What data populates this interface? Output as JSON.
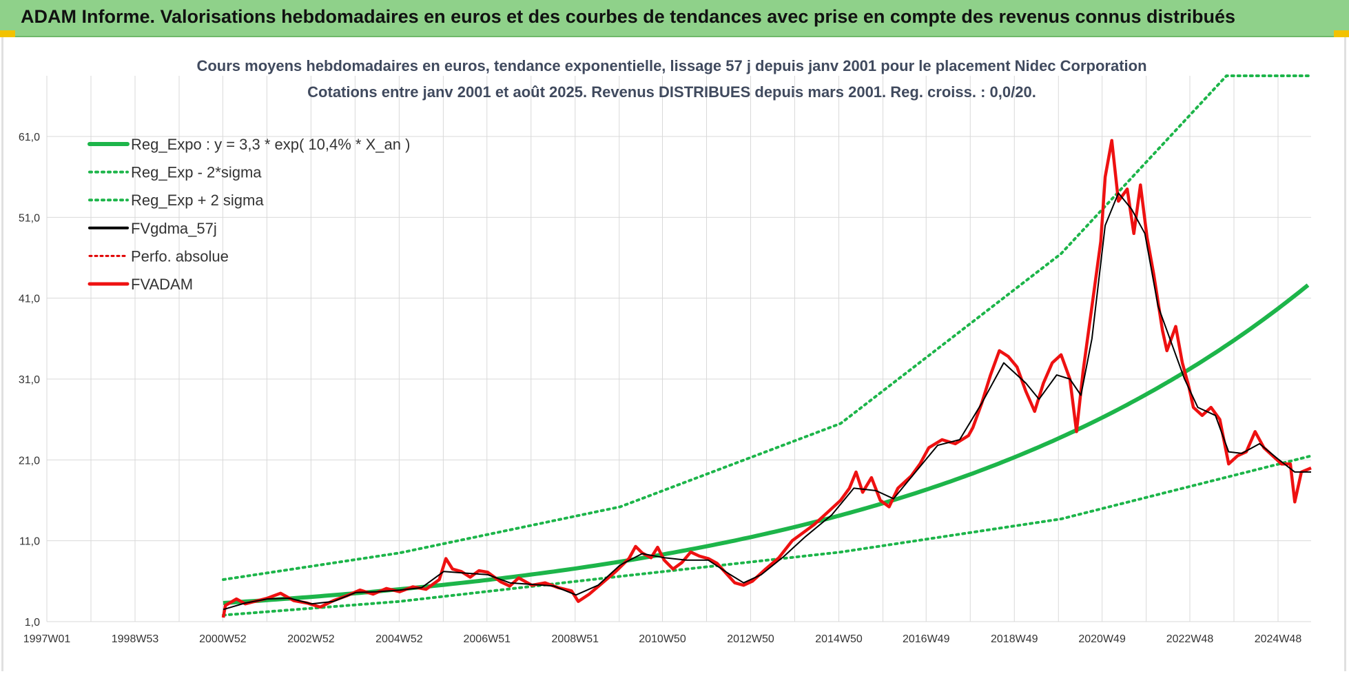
{
  "header": {
    "title": "ADAM Informe. Valorisations hebdomadaires en euros et des courbes de tendances avec prise en compte des revenus connus distribués"
  },
  "colors": {
    "banner": "#8fd18a",
    "regression": "#1db54a",
    "sigma": "#1db54a",
    "fvgdma": "#000000",
    "perfo": "#e00000",
    "fvadam": "#ee1111",
    "grid": "#d9d9d9"
  },
  "chart_data": {
    "type": "line",
    "title": "Cours moyens hebdomadaires en euros, tendance exponentielle, lissage 57 j depuis janv 2001 pour le placement Nidec Corporation",
    "subtitle": "Cotations entre janv 2001 et août 2025.  Revenus DISTRIBUES depuis mars 2001. Reg. croiss. : 0,0/20.",
    "xlabel": "",
    "ylabel": "",
    "x_range": [
      1997.0,
      2025.67
    ],
    "ylim": [
      1.0,
      68.5
    ],
    "y_ticks": [
      1.0,
      11.0,
      21.0,
      31.0,
      41.0,
      51.0,
      61.0
    ],
    "y_tick_labels": [
      "1,0",
      "11,0",
      "21,0",
      "31,0",
      "41,0",
      "51,0",
      "61,0"
    ],
    "x_ticks": [
      {
        "label": "1997W01",
        "x": 1997.0
      },
      {
        "label": "1998W53",
        "x": 1999.0
      },
      {
        "label": "2000W52",
        "x": 2000.99
      },
      {
        "label": "2002W52",
        "x": 2002.99
      },
      {
        "label": "2004W52",
        "x": 2004.99
      },
      {
        "label": "2006W51",
        "x": 2006.98
      },
      {
        "label": "2008W51",
        "x": 2008.98
      },
      {
        "label": "2010W50",
        "x": 2010.96
      },
      {
        "label": "2012W50",
        "x": 2012.96
      },
      {
        "label": "2014W50",
        "x": 2014.96
      },
      {
        "label": "2016W49",
        "x": 2016.94
      },
      {
        "label": "2018W49",
        "x": 2018.94
      },
      {
        "label": "2020W49",
        "x": 2020.93
      },
      {
        "label": "2022W48",
        "x": 2022.92
      },
      {
        "label": "2024W48",
        "x": 2024.92
      }
    ],
    "grid": true,
    "legend_position": "top-left",
    "legend": [
      {
        "key": "reg",
        "label": "Reg_Expo : y = 3,3 * exp( 10,4% *  X_an )"
      },
      {
        "key": "minus",
        "label": "Reg_Exp - 2*sigma"
      },
      {
        "key": "plus",
        "label": "Reg_Exp + 2 sigma"
      },
      {
        "key": "fvgdma",
        "label": "FVgdma_57j"
      },
      {
        "key": "perfo",
        "label": "Perfo. absolue"
      },
      {
        "key": "fvadam",
        "label": "FVADAM"
      }
    ],
    "regression": {
      "a": 3.3,
      "b": 0.104,
      "x_start": 2001.0,
      "x_end": 2025.67
    },
    "sigma_bands": {
      "minus": [
        [
          2001.0,
          1.8
        ],
        [
          2005.0,
          3.5
        ],
        [
          2010.0,
          6.6
        ],
        [
          2015.0,
          9.6
        ],
        [
          2020.0,
          13.7
        ],
        [
          2025.67,
          21.5
        ]
      ],
      "plus": [
        [
          2001.0,
          6.2
        ],
        [
          2005.0,
          9.5
        ],
        [
          2010.0,
          15.2
        ],
        [
          2015.0,
          25.5
        ],
        [
          2020.0,
          46.5
        ],
        [
          2023.75,
          68.5
        ],
        [
          2025.67,
          68.5
        ]
      ]
    },
    "series": [
      {
        "name": "FVADAM",
        "points": [
          [
            2001.0,
            1.5
          ],
          [
            2001.05,
            3.0
          ],
          [
            2001.3,
            3.8
          ],
          [
            2001.5,
            3.2
          ],
          [
            2002.0,
            3.9
          ],
          [
            2002.3,
            4.5
          ],
          [
            2002.6,
            3.6
          ],
          [
            2002.9,
            3.3
          ],
          [
            2003.2,
            2.8
          ],
          [
            2003.5,
            3.6
          ],
          [
            2003.8,
            4.2
          ],
          [
            2004.1,
            4.9
          ],
          [
            2004.4,
            4.4
          ],
          [
            2004.7,
            5.1
          ],
          [
            2005.0,
            4.7
          ],
          [
            2005.3,
            5.3
          ],
          [
            2005.6,
            5.0
          ],
          [
            2005.9,
            6.2
          ],
          [
            2006.05,
            8.8
          ],
          [
            2006.2,
            7.5
          ],
          [
            2006.4,
            7.2
          ],
          [
            2006.6,
            6.5
          ],
          [
            2006.8,
            7.3
          ],
          [
            2007.0,
            7.1
          ],
          [
            2007.3,
            5.9
          ],
          [
            2007.5,
            5.4
          ],
          [
            2007.7,
            6.4
          ],
          [
            2008.0,
            5.5
          ],
          [
            2008.3,
            5.8
          ],
          [
            2008.6,
            5.2
          ],
          [
            2008.9,
            4.8
          ],
          [
            2009.05,
            3.5
          ],
          [
            2009.3,
            4.4
          ],
          [
            2009.6,
            5.8
          ],
          [
            2009.9,
            7.2
          ],
          [
            2010.2,
            8.8
          ],
          [
            2010.35,
            10.3
          ],
          [
            2010.5,
            9.5
          ],
          [
            2010.7,
            8.9
          ],
          [
            2010.85,
            10.2
          ],
          [
            2011.0,
            8.6
          ],
          [
            2011.2,
            7.5
          ],
          [
            2011.4,
            8.3
          ],
          [
            2011.6,
            9.6
          ],
          [
            2011.8,
            9.1
          ],
          [
            2012.0,
            8.8
          ],
          [
            2012.2,
            8.2
          ],
          [
            2012.4,
            7.0
          ],
          [
            2012.6,
            5.8
          ],
          [
            2012.8,
            5.5
          ],
          [
            2013.0,
            6.0
          ],
          [
            2013.3,
            7.5
          ],
          [
            2013.6,
            8.9
          ],
          [
            2013.9,
            11.0
          ],
          [
            2014.1,
            11.8
          ],
          [
            2014.4,
            13.0
          ],
          [
            2014.7,
            14.5
          ],
          [
            2015.0,
            16.0
          ],
          [
            2015.2,
            17.5
          ],
          [
            2015.35,
            19.5
          ],
          [
            2015.5,
            17.0
          ],
          [
            2015.7,
            18.8
          ],
          [
            2015.9,
            16.0
          ],
          [
            2016.1,
            15.2
          ],
          [
            2016.3,
            17.5
          ],
          [
            2016.6,
            19.0
          ],
          [
            2016.8,
            20.5
          ],
          [
            2017.0,
            22.5
          ],
          [
            2017.3,
            23.5
          ],
          [
            2017.6,
            23.0
          ],
          [
            2017.9,
            24.0
          ],
          [
            2018.0,
            25.0
          ],
          [
            2018.2,
            28.0
          ],
          [
            2018.4,
            31.5
          ],
          [
            2018.6,
            34.5
          ],
          [
            2018.8,
            33.8
          ],
          [
            2019.0,
            32.5
          ],
          [
            2019.2,
            29.5
          ],
          [
            2019.4,
            27.0
          ],
          [
            2019.6,
            30.5
          ],
          [
            2019.8,
            33.0
          ],
          [
            2020.0,
            34.0
          ],
          [
            2020.2,
            31.0
          ],
          [
            2020.35,
            24.5
          ],
          [
            2020.5,
            32.0
          ],
          [
            2020.7,
            40.0
          ],
          [
            2020.9,
            48.0
          ],
          [
            2021.0,
            56.0
          ],
          [
            2021.15,
            60.5
          ],
          [
            2021.3,
            53.0
          ],
          [
            2021.5,
            54.5
          ],
          [
            2021.65,
            49.0
          ],
          [
            2021.8,
            55.0
          ],
          [
            2021.95,
            48.5
          ],
          [
            2022.1,
            44.0
          ],
          [
            2022.3,
            37.0
          ],
          [
            2022.4,
            34.5
          ],
          [
            2022.6,
            37.5
          ],
          [
            2022.75,
            33.0
          ],
          [
            2022.9,
            30.0
          ],
          [
            2023.0,
            27.5
          ],
          [
            2023.2,
            26.5
          ],
          [
            2023.4,
            27.5
          ],
          [
            2023.6,
            26.0
          ],
          [
            2023.8,
            20.5
          ],
          [
            2024.0,
            21.5
          ],
          [
            2024.2,
            22.0
          ],
          [
            2024.4,
            24.5
          ],
          [
            2024.6,
            22.5
          ],
          [
            2024.8,
            21.5
          ],
          [
            2025.0,
            20.5
          ],
          [
            2025.2,
            20.5
          ],
          [
            2025.3,
            15.8
          ],
          [
            2025.45,
            19.5
          ],
          [
            2025.67,
            20.0
          ]
        ]
      },
      {
        "name": "FVgdma_57j",
        "points": [
          [
            2001.0,
            2.5
          ],
          [
            2001.5,
            3.3
          ],
          [
            2002.0,
            3.8
          ],
          [
            2002.5,
            3.9
          ],
          [
            2003.0,
            3.2
          ],
          [
            2003.5,
            3.5
          ],
          [
            2004.0,
            4.6
          ],
          [
            2004.5,
            4.7
          ],
          [
            2005.0,
            4.9
          ],
          [
            2005.5,
            5.2
          ],
          [
            2006.0,
            7.2
          ],
          [
            2006.5,
            7.0
          ],
          [
            2007.0,
            6.8
          ],
          [
            2007.5,
            5.8
          ],
          [
            2008.0,
            5.6
          ],
          [
            2008.5,
            5.4
          ],
          [
            2009.0,
            4.3
          ],
          [
            2009.5,
            5.5
          ],
          [
            2010.0,
            8.0
          ],
          [
            2010.5,
            9.4
          ],
          [
            2011.0,
            8.9
          ],
          [
            2011.5,
            8.6
          ],
          [
            2012.0,
            8.6
          ],
          [
            2012.5,
            6.8
          ],
          [
            2012.8,
            5.8
          ],
          [
            2013.2,
            6.8
          ],
          [
            2013.7,
            9.0
          ],
          [
            2014.2,
            11.5
          ],
          [
            2014.8,
            14.2
          ],
          [
            2015.3,
            17.5
          ],
          [
            2015.8,
            17.2
          ],
          [
            2016.2,
            16.2
          ],
          [
            2016.7,
            19.5
          ],
          [
            2017.2,
            22.8
          ],
          [
            2017.7,
            23.5
          ],
          [
            2018.2,
            28.0
          ],
          [
            2018.7,
            33.0
          ],
          [
            2019.2,
            30.5
          ],
          [
            2019.5,
            28.5
          ],
          [
            2019.9,
            31.5
          ],
          [
            2020.2,
            31.0
          ],
          [
            2020.45,
            29.0
          ],
          [
            2020.7,
            36.0
          ],
          [
            2021.0,
            50.0
          ],
          [
            2021.3,
            54.0
          ],
          [
            2021.6,
            52.0
          ],
          [
            2021.9,
            49.0
          ],
          [
            2022.2,
            40.0
          ],
          [
            2022.5,
            35.5
          ],
          [
            2022.8,
            31.0
          ],
          [
            2023.1,
            27.5
          ],
          [
            2023.5,
            26.5
          ],
          [
            2023.8,
            22.0
          ],
          [
            2024.1,
            21.8
          ],
          [
            2024.5,
            23.0
          ],
          [
            2024.9,
            21.2
          ],
          [
            2025.3,
            19.5
          ],
          [
            2025.67,
            19.5
          ]
        ]
      }
    ]
  }
}
